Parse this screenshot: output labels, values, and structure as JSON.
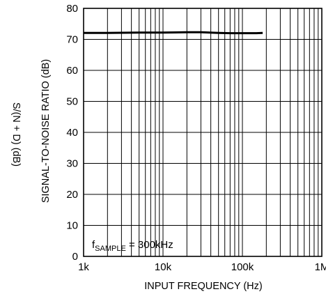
{
  "chart_data": {
    "type": "line",
    "title": "",
    "xlabel": "INPUT FREQUENCY (Hz)",
    "ylabel": "SIGNAL-TO-NOISE RATIO (dB)",
    "ylabel_secondary": "S/(N + D) (dB)",
    "x_scale": "log",
    "xlim": [
      1000,
      1000000
    ],
    "ylim": [
      0,
      80
    ],
    "grid": true,
    "x_ticks": [
      1000,
      10000,
      100000,
      1000000
    ],
    "x_tick_labels": [
      "1k",
      "10k",
      "100k",
      "1M"
    ],
    "y_ticks": [
      0,
      10,
      20,
      30,
      40,
      50,
      60,
      70,
      80
    ],
    "y_tick_labels": [
      "0",
      "10",
      "20",
      "30",
      "40",
      "50",
      "60",
      "70",
      "80"
    ],
    "annotation": {
      "f": "f",
      "sub": "SAMPLE",
      "rest": " = 300kHz"
    },
    "series": [
      {
        "x": [
          1000,
          2000,
          5000,
          10000,
          20000,
          30000,
          50000,
          70000,
          100000,
          150000,
          180000
        ],
        "y": [
          72.1,
          72.1,
          72.2,
          72.2,
          72.3,
          72.3,
          72.1,
          72.0,
          72.0,
          72.0,
          72.1
        ]
      }
    ]
  }
}
